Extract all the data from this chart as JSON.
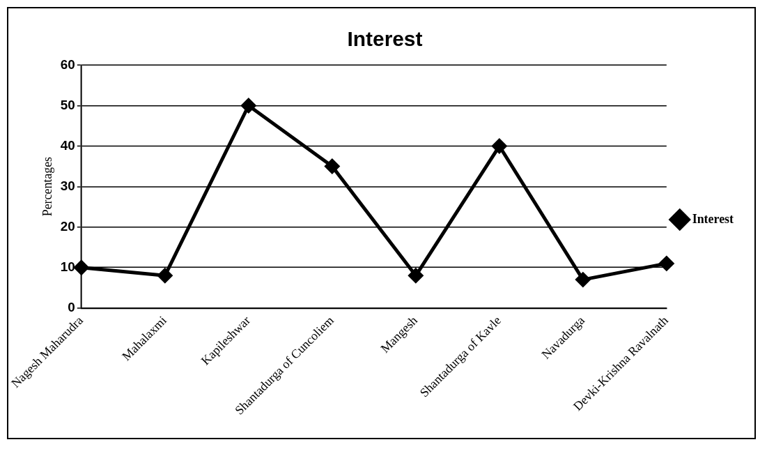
{
  "chart_data": {
    "type": "line",
    "title": "Interest",
    "ylabel": "Percentages",
    "categories": [
      "Nagesh Maharudra",
      "Mahalaxmi",
      "Kapileshwar",
      "Shantadurga of Cuncoliem",
      "Mangesh",
      "Shantadurga of Kavle",
      "Navadurga",
      "Devki-Krishna Ravalnath"
    ],
    "series": [
      {
        "name": "Interest",
        "color": "#000000",
        "values": [
          10,
          8,
          50,
          35,
          8,
          40,
          7,
          11
        ]
      }
    ],
    "ylim": [
      0,
      60
    ],
    "yticks": [
      0,
      10,
      20,
      30,
      40,
      50,
      60
    ],
    "grid": "y",
    "legend": "right",
    "marker": "diamond",
    "line_style": "solid"
  }
}
